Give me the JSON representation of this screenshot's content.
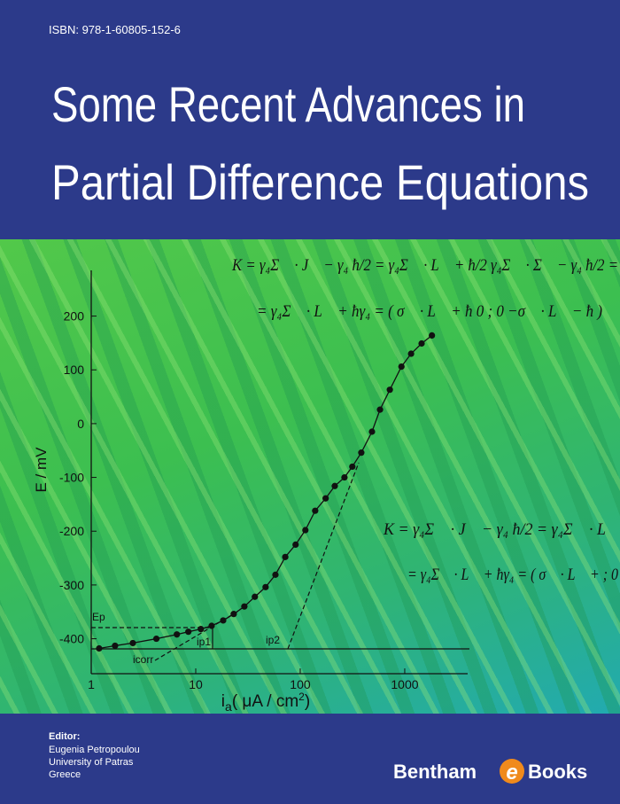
{
  "header": {
    "isbn": "ISBN: 978-1-60805-152-6",
    "title_lines": [
      "Some Recent Advances in",
      "Partial Difference Equations"
    ]
  },
  "equations": [
    "K = γ₄Σ⃗ · J⃗ − γ₄ ħ/2 = γ₄Σ⃗ · L⃗ + ħ/2 γ₄Σ⃗ · Σ⃗ − γ₄ ħ/2 =",
    "= γ₄Σ⃗ · L⃗ + ħγ₄ = ( σ⃗ · L⃗ + ħ   0 ;  0   −σ⃗ · L⃗ − ħ )",
    "K = γ₄Σ⃗ · J⃗ − γ₄ ħ/2 = γ₄Σ⃗ · L⃗",
    "= γ₄Σ⃗ · L⃗ + ħγ₄ = ( σ⃗ · L⃗ + ; 0"
  ],
  "chart_data": {
    "type": "line",
    "ylabel": "E / mV",
    "xlabel": [
      "i",
      "a",
      "( μA / cm",
      "2",
      ")"
    ],
    "annotations": [
      "Ep",
      "ip1",
      "icorr",
      "ip2"
    ],
    "log_x": true,
    "color": "#111111",
    "x": [
      1.19,
      1.69,
      2.5,
      4.2,
      6.6,
      8.5,
      11.2,
      14.2,
      18.3,
      23.1,
      29.2,
      36.8,
      46.6,
      57.9,
      71.9,
      90.3,
      112,
      139,
      175,
      214,
      265,
      315,
      384,
      486,
      580,
      720,
      930,
      1150,
      1450,
      1820
    ],
    "values": [
      -418,
      -413,
      -408,
      -400,
      -392,
      -387,
      -382,
      -376,
      -366,
      -354,
      -340,
      -322,
      -304,
      -281,
      -248,
      -225,
      -198,
      -162,
      -139,
      -116,
      -100,
      -80,
      -54,
      -15,
      26,
      63,
      106,
      130,
      149,
      164
    ],
    "xlim": [
      1,
      4000
    ],
    "xticks": [
      1,
      10,
      100,
      1000
    ],
    "ylim": [
      -465,
      285
    ],
    "yticks": [
      -400,
      -300,
      -200,
      -100,
      0,
      100,
      200
    ]
  },
  "footer": {
    "editor_label": "Editor:",
    "editor_name": "Eugenia Petropoulou",
    "affiliation": "University of Patras",
    "country": "Greece",
    "publisher": [
      "Bentham",
      "e",
      "Books"
    ]
  }
}
